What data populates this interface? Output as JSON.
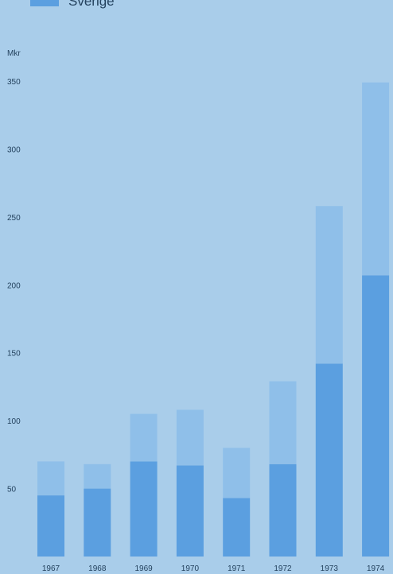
{
  "legend": {
    "label": "Sverige",
    "color": "#5b9fe0"
  },
  "chart_data": {
    "type": "bar",
    "stacked": true,
    "title": "",
    "xlabel": "",
    "ylabel": "Mkr",
    "ylim": [
      0,
      350
    ],
    "yticks": [
      50,
      100,
      150,
      200,
      250,
      300,
      350
    ],
    "categories": [
      "1967",
      "1968",
      "1969",
      "1970",
      "1971",
      "1972",
      "1973",
      "1974"
    ],
    "series": [
      {
        "name": "Sverige",
        "color": "#5b9fe0",
        "values": [
          45,
          50,
          70,
          67,
          43,
          68,
          142,
          207
        ]
      },
      {
        "color": "#8fbfe9",
        "values": [
          25,
          18,
          35,
          41,
          37,
          61,
          116,
          142
        ]
      }
    ],
    "grid": false
  }
}
